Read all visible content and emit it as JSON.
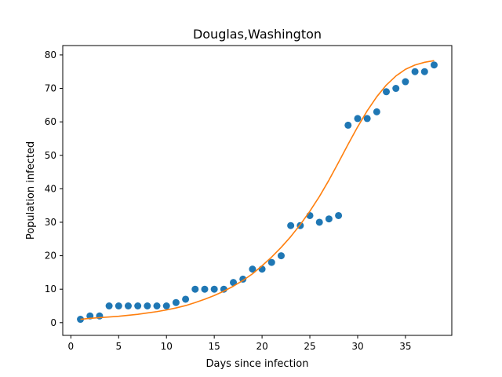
{
  "chart_data": {
    "type": "scatter",
    "title": "Douglas,Washington",
    "xlabel": "Days since infection",
    "ylabel": "Population infected",
    "xlim": [
      -0.85,
      39.85
    ],
    "ylim": [
      -3.8,
      82.8
    ],
    "xticks": [
      0,
      5,
      10,
      15,
      20,
      25,
      30,
      35
    ],
    "yticks": [
      0,
      10,
      20,
      30,
      40,
      50,
      60,
      70,
      80
    ],
    "grid": false,
    "series": [
      {
        "type": "scatter",
        "color": "#1f77b4",
        "x": [
          1,
          2,
          3,
          4,
          5,
          6,
          7,
          8,
          9,
          10,
          11,
          12,
          13,
          14,
          15,
          16,
          17,
          18,
          19,
          20,
          21,
          22,
          23,
          24,
          25,
          26,
          27,
          28,
          29,
          30,
          31,
          32,
          33,
          34,
          35,
          36,
          37,
          38
        ],
        "y": [
          1,
          2,
          2,
          5,
          5,
          5,
          5,
          5,
          5,
          5,
          6,
          7,
          10,
          10,
          10,
          10,
          12,
          13,
          16,
          16,
          18,
          20,
          29,
          29,
          32,
          30,
          31,
          32,
          59,
          61,
          61,
          63,
          69,
          70,
          72,
          75,
          75,
          77
        ]
      },
      {
        "type": "line",
        "color": "#ff7f0e",
        "x": [
          1,
          2,
          3,
          4,
          5,
          6,
          7,
          8,
          9,
          10,
          11,
          12,
          13,
          14,
          15,
          16,
          17,
          18,
          19,
          20,
          21,
          22,
          23,
          24,
          25,
          26,
          27,
          28,
          29,
          30,
          31,
          32,
          33,
          34,
          35,
          36,
          37,
          38
        ],
        "y": [
          1.0,
          1.3,
          1.5,
          1.7,
          1.9,
          2.2,
          2.5,
          2.9,
          3.3,
          3.8,
          4.4,
          5.1,
          6.0,
          7.0,
          8.1,
          9.4,
          10.9,
          12.6,
          14.6,
          17.0,
          19.6,
          22.5,
          25.7,
          29.3,
          33.3,
          37.7,
          42.6,
          47.9,
          53.3,
          58.5,
          63.3,
          67.5,
          71.0,
          73.7,
          75.7,
          77.0,
          77.8,
          78.3
        ]
      }
    ]
  }
}
